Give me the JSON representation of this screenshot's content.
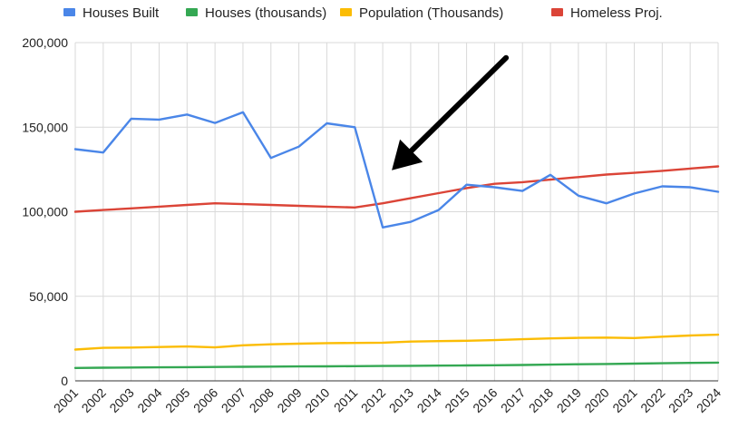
{
  "chart_data": {
    "type": "line",
    "title": "",
    "xlabel": "",
    "ylabel": "",
    "ylim": [
      0,
      200000
    ],
    "y_ticks": [
      0,
      50000,
      100000,
      150000,
      200000
    ],
    "y_tick_labels": [
      "0",
      "50,000",
      "100,000",
      "150,000",
      "200,000"
    ],
    "x": [
      "2001",
      "2002",
      "2003",
      "2004",
      "2005",
      "2006",
      "2007",
      "2008",
      "2009",
      "2010",
      "2011",
      "2012",
      "2013",
      "2014",
      "2015",
      "2016",
      "2017",
      "2018",
      "2019",
      "2020",
      "2021",
      "2022",
      "2023",
      "2024"
    ],
    "grid": true,
    "legend_position": "top",
    "series": [
      {
        "name": "Houses Built",
        "color": "#4a86e8",
        "values": [
          137000,
          135000,
          155000,
          154500,
          157500,
          152500,
          158800,
          131800,
          138500,
          152300,
          150000,
          90700,
          94000,
          101000,
          116000,
          114500,
          112300,
          121800,
          109500,
          105000,
          110800,
          115000,
          114500,
          111800
        ]
      },
      {
        "name": "Houses (thousands)",
        "color": "#34a853",
        "values": [
          7600,
          7800,
          7900,
          8000,
          8100,
          8200,
          8300,
          8400,
          8500,
          8600,
          8700,
          8800,
          8900,
          9000,
          9100,
          9200,
          9400,
          9600,
          9800,
          10000,
          10200,
          10400,
          10600,
          10800
        ]
      },
      {
        "name": "Population (Thousands)",
        "color": "#fbbc04",
        "values": [
          18500,
          19500,
          19700,
          20000,
          20300,
          19800,
          21000,
          21600,
          22000,
          22300,
          22400,
          22600,
          23200,
          23500,
          23700,
          24100,
          24600,
          25100,
          25400,
          25600,
          25300,
          26100,
          26800,
          27300
        ]
      },
      {
        "name": "Homeless Proj.",
        "color": "#db4437",
        "values": [
          100000,
          101000,
          102000,
          103000,
          104000,
          105000,
          104500,
          104000,
          103500,
          103000,
          102500,
          105000,
          108000,
          111000,
          114000,
          116500,
          117500,
          119000,
          120500,
          122000,
          123000,
          124200,
          125500,
          126800
        ]
      }
    ],
    "annotations": [
      {
        "type": "arrow",
        "color": "#000000",
        "direction": "down-left",
        "target_x": "2012",
        "target_y": 124000
      }
    ]
  }
}
